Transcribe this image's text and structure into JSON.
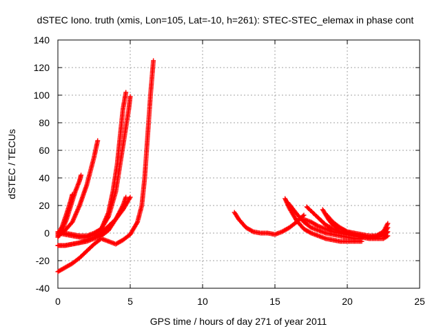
{
  "chart_data": {
    "type": "scatter",
    "title": "dSTEC Iono. truth (xmis, Lon=105, Lat=-10, h=261): STEC-STEC_elemax in phase cont",
    "xlabel": "GPS time / hours of day 271 of year 2011",
    "ylabel": "dSTEC  / TECUs",
    "xlim": [
      0,
      25
    ],
    "ylim": [
      -40,
      140
    ],
    "x_ticks": [
      0,
      5,
      10,
      15,
      20,
      25
    ],
    "y_ticks": [
      -40,
      -20,
      0,
      20,
      40,
      60,
      80,
      100,
      120,
      140
    ],
    "grid": true,
    "marker": "+",
    "color": "#ff0000",
    "series": [
      {
        "x": [
          0.0,
          0.3,
          0.6,
          0.9,
          1.2,
          1.5,
          1.6
        ],
        "y": [
          -3,
          2,
          10,
          20,
          30,
          38,
          42
        ]
      },
      {
        "x": [
          0.0,
          0.3,
          0.6,
          0.9,
          1.0
        ],
        "y": [
          -1,
          5,
          14,
          24,
          28
        ]
      },
      {
        "x": [
          0.0,
          0.5,
          1.0,
          1.5,
          2.0,
          2.5,
          2.75
        ],
        "y": [
          -2,
          2,
          8,
          20,
          35,
          55,
          67
        ]
      },
      {
        "x": [
          0.0,
          0.5,
          1.0,
          1.5,
          2.0,
          2.5,
          3.0,
          3.5,
          3.8,
          4.1,
          4.3,
          4.5,
          4.7
        ],
        "y": [
          0,
          -1,
          -2,
          -3,
          -3,
          -1,
          3,
          15,
          30,
          50,
          70,
          90,
          102
        ]
      },
      {
        "x": [
          0.0,
          0.5,
          1.0,
          1.5,
          2.0,
          2.5,
          3.0,
          3.5,
          4.0,
          4.3,
          4.6,
          4.9,
          5.0
        ],
        "y": [
          1,
          0,
          -1,
          -2,
          -2,
          0,
          3,
          12,
          30,
          50,
          70,
          90,
          99
        ]
      },
      {
        "x": [
          0.0,
          0.5,
          1.0,
          1.5,
          2.0,
          2.5,
          3.0,
          3.5,
          4.0,
          4.5,
          5.0
        ],
        "y": [
          -9,
          -9,
          -8,
          -7,
          -5,
          -3,
          0,
          5,
          10,
          17,
          26
        ]
      },
      {
        "x": [
          0.0,
          0.5,
          1.0,
          1.5,
          2.0,
          2.5,
          3.0,
          3.5,
          4.0,
          4.5,
          4.7
        ],
        "y": [
          -9,
          -9,
          -8,
          -7,
          -6,
          -4,
          -2,
          2,
          10,
          20,
          26
        ]
      },
      {
        "x": [
          0.0,
          0.5,
          1.0,
          1.5,
          2.0,
          2.5,
          3.0,
          3.5,
          4.0,
          4.5,
          5.0,
          5.5,
          5.8,
          6.0,
          6.2,
          6.4,
          6.6
        ],
        "y": [
          -28,
          -25,
          -22,
          -18,
          -13,
          -8,
          -4,
          -6,
          -8,
          -5,
          -1,
          8,
          20,
          40,
          70,
          100,
          125
        ]
      },
      {
        "x": [
          12.2,
          12.5,
          13.0,
          13.5,
          14.0,
          14.5,
          15.0,
          15.5,
          16.0,
          16.5,
          17.0
        ],
        "y": [
          15,
          10,
          4,
          1,
          0,
          0,
          -1,
          1,
          4,
          8,
          13
        ]
      },
      {
        "x": [
          15.7,
          16.0,
          16.5,
          17.0,
          17.5,
          18.0,
          18.5,
          19.0,
          19.5,
          20.0,
          20.5,
          21.0
        ],
        "y": [
          25,
          18,
          9,
          3,
          0,
          -2,
          -4,
          -5,
          -6,
          -6,
          -6,
          -6
        ]
      },
      {
        "x": [
          15.9,
          16.5,
          17.0,
          17.5,
          18.0,
          18.5,
          19.0,
          19.5,
          20.0,
          20.5,
          21.0
        ],
        "y": [
          22,
          14,
          8,
          4,
          2,
          0,
          -1,
          -2,
          -3,
          -4,
          -4
        ]
      },
      {
        "x": [
          17.0,
          17.5,
          18.0,
          18.5,
          19.0,
          19.5,
          20.0,
          20.5,
          21.0,
          21.5,
          22.0,
          22.5,
          22.8
        ],
        "y": [
          10,
          8,
          5,
          3,
          1,
          0,
          -1,
          -2,
          -3,
          -4,
          -4,
          -4,
          -2
        ]
      },
      {
        "x": [
          17.2,
          17.6,
          18.0,
          18.5,
          19.0,
          19.5,
          20.0,
          20.5,
          21.0,
          21.5,
          22.0,
          22.5,
          22.8
        ],
        "y": [
          19,
          15,
          11,
          6,
          3,
          1,
          0,
          -1,
          -2,
          -3,
          -2,
          1,
          7
        ]
      },
      {
        "x": [
          18.3,
          18.7,
          19.0,
          19.5,
          20.0,
          20.5,
          21.0,
          21.5,
          22.0,
          22.5,
          22.8
        ],
        "y": [
          17,
          10,
          6,
          3,
          1,
          0,
          -1,
          -2,
          -2,
          -1,
          4
        ]
      },
      {
        "x": [
          18.5,
          19.0,
          19.5,
          20.0,
          20.5,
          21.0,
          21.5,
          22.0,
          22.5,
          22.8
        ],
        "y": [
          14,
          8,
          4,
          1,
          -1,
          -2,
          -3,
          -3,
          -2,
          1
        ]
      }
    ]
  }
}
